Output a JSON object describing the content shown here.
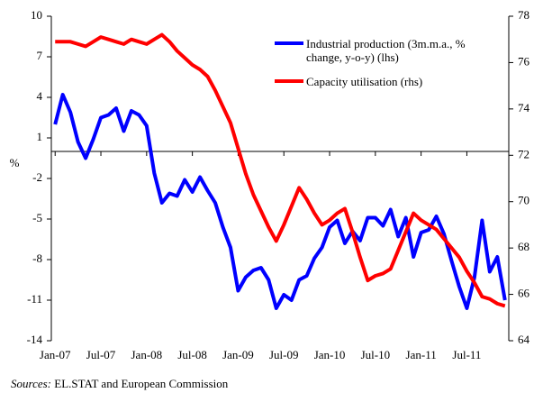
{
  "chart_data": {
    "type": "line",
    "categories": [
      "Jan-07",
      null,
      null,
      null,
      null,
      null,
      "Jul-07",
      null,
      null,
      null,
      null,
      null,
      "Jan-08",
      null,
      null,
      null,
      null,
      null,
      "Jul-08",
      null,
      null,
      null,
      null,
      null,
      "Jan-09",
      null,
      null,
      null,
      null,
      null,
      "Jul-09",
      null,
      null,
      null,
      null,
      null,
      "Jan-10",
      null,
      null,
      null,
      null,
      null,
      "Jul-10",
      null,
      null,
      null,
      null,
      null,
      "Jan-11",
      null,
      null,
      null,
      null,
      null,
      "Jul-11",
      null,
      null,
      null,
      null,
      null
    ],
    "series": [
      {
        "name": "Industrial production (3m.m.a., % change, y-o-y) (lhs)",
        "color": "#0000ff",
        "axis": "y",
        "values": [
          2,
          4.2,
          2.9,
          0.7,
          -0.5,
          0.9,
          2.5,
          2.7,
          3.2,
          1.5,
          3,
          2.7,
          1.9,
          -1.6,
          -3.8,
          -3.1,
          -3.3,
          -2.1,
          -3,
          -1.9,
          -2.9,
          -3.8,
          -5.6,
          -7.1,
          -10.3,
          -9.3,
          -8.8,
          -8.6,
          -9.5,
          -11.6,
          -10.6,
          -11,
          -9.5,
          -9.2,
          -7.9,
          -7.1,
          -5.6,
          -5.1,
          -6.8,
          -5.9,
          -6.6,
          -4.9,
          -4.9,
          -5.5,
          -4.3,
          -6.3,
          -4.9,
          -7.8,
          -6,
          -5.8,
          -4.8,
          -6.1,
          -8.1,
          -10,
          -11.6,
          -9.3,
          -5.1,
          -8.9,
          -7.8,
          -11
        ]
      },
      {
        "name": "Capacity utilisation (rhs)",
        "color": "#ff0000",
        "axis": "y2",
        "values": [
          76.9,
          76.9,
          76.9,
          76.8,
          76.7,
          76.9,
          77.1,
          77.0,
          76.9,
          76.8,
          77.0,
          76.9,
          76.8,
          77.0,
          77.2,
          76.9,
          76.5,
          76.2,
          75.9,
          75.7,
          75.4,
          74.8,
          74.1,
          73.4,
          72.3,
          71.2,
          70.3,
          69.6,
          68.9,
          68.3,
          69.0,
          69.8,
          70.6,
          70.1,
          69.5,
          69.0,
          69.2,
          69.5,
          69.7,
          68.7,
          67.6,
          66.6,
          66.8,
          66.9,
          67.1,
          67.9,
          68.7,
          69.5,
          69.2,
          69.0,
          68.8,
          68.4,
          68.0,
          67.6,
          67.0,
          66.5,
          65.9,
          65.8,
          65.6,
          65.5
        ]
      }
    ],
    "y_label": "%",
    "ylim": [
      -14,
      10
    ],
    "yticks": [
      10,
      7,
      4,
      1,
      -2,
      -5,
      -8,
      -11,
      -14
    ],
    "y2lim": [
      64,
      78
    ],
    "y2ticks": [
      78,
      76,
      74,
      72,
      70,
      68,
      66,
      64
    ],
    "source_label": "Sources:",
    "source": "EL.STAT and European Commission"
  }
}
